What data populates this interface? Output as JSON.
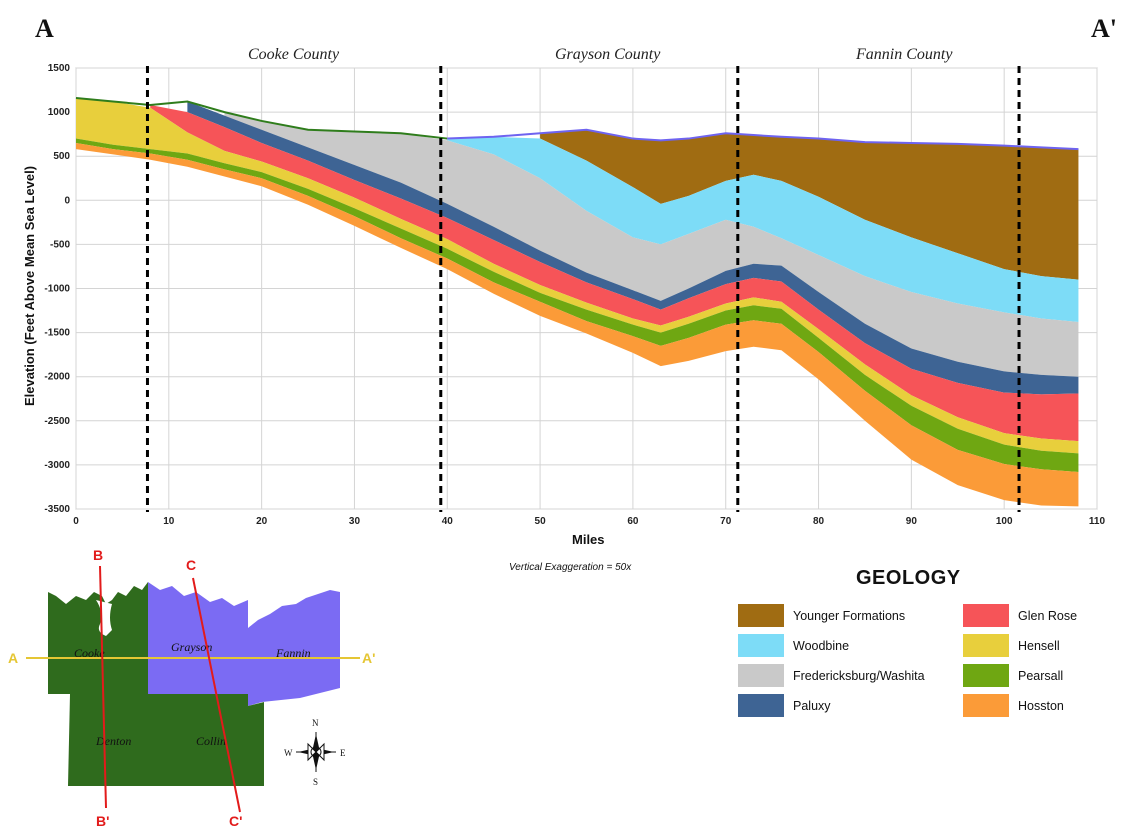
{
  "section": {
    "start_label": "A",
    "end_label": "A'"
  },
  "counties": [
    "Cooke County",
    "Grayson County",
    "Fannin County"
  ],
  "chart_data": {
    "type": "area",
    "title": "",
    "xlabel": "Miles",
    "ylabel": "Elevation (Feet Above Mean Sea Level)",
    "xlim": [
      0,
      110
    ],
    "ylim": [
      -3500,
      1500
    ],
    "x_ticks": [
      0,
      10,
      20,
      30,
      40,
      50,
      60,
      70,
      80,
      90,
      100,
      110
    ],
    "y_ticks": [
      1500,
      1000,
      500,
      0,
      -500,
      -1000,
      -1500,
      -2000,
      -2500,
      -3000,
      -3500
    ],
    "grid": true,
    "note": "Vertical Exaggeration = 50x",
    "county_boundaries_miles": [
      7.7,
      39.3,
      71.3,
      101.6
    ],
    "x": [
      0,
      4,
      8,
      12,
      16,
      20,
      25,
      30,
      35,
      40,
      45,
      50,
      55,
      60,
      63,
      66,
      70,
      73,
      76,
      80,
      85,
      90,
      95,
      100,
      104,
      108
    ],
    "surface": [
      1160,
      1120,
      1080,
      1120,
      1000,
      900,
      800,
      780,
      760,
      700,
      720,
      760,
      800,
      700,
      680,
      700,
      760,
      740,
      720,
      700,
      660,
      650,
      640,
      620,
      600,
      580
    ],
    "series": [
      {
        "name": "Younger Formations",
        "color": "#a06c12",
        "bottom": [
          null,
          null,
          null,
          null,
          null,
          null,
          null,
          null,
          null,
          null,
          null,
          700,
          450,
          150,
          -40,
          50,
          220,
          290,
          220,
          40,
          -220,
          -420,
          -600,
          -780,
          -860,
          -900
        ]
      },
      {
        "name": "Woodbine",
        "color": "#7ddcf7",
        "bottom": [
          null,
          null,
          null,
          null,
          null,
          null,
          null,
          null,
          null,
          680,
          520,
          250,
          -120,
          -420,
          -500,
          -380,
          -220,
          -300,
          -430,
          -620,
          -860,
          -1040,
          -1170,
          -1270,
          -1340,
          -1380
        ]
      },
      {
        "name": "Fredericksburg/Washita",
        "color": "#c9c9c9",
        "bottom": [
          null,
          null,
          null,
          null,
          960,
          800,
          600,
          400,
          200,
          -40,
          -300,
          -570,
          -820,
          -1020,
          -1140,
          -1000,
          -800,
          -720,
          -740,
          -1040,
          -1400,
          -1680,
          -1830,
          -1940,
          -1980,
          -2000
        ]
      },
      {
        "name": "Paluxy",
        "color": "#3e6494",
        "bottom": [
          null,
          null,
          null,
          1000,
          830,
          650,
          450,
          230,
          20,
          -200,
          -450,
          -700,
          -930,
          -1120,
          -1240,
          -1110,
          -950,
          -880,
          -920,
          -1240,
          -1620,
          -1910,
          -2070,
          -2180,
          -2200,
          -2190
        ]
      },
      {
        "name": "Glen Rose",
        "color": "#f65458",
        "bottom": [
          null,
          null,
          1050,
          770,
          560,
          440,
          250,
          30,
          -210,
          -440,
          -720,
          -960,
          -1160,
          -1340,
          -1420,
          -1320,
          -1170,
          -1100,
          -1150,
          -1460,
          -1860,
          -2210,
          -2460,
          -2640,
          -2700,
          -2730
        ]
      },
      {
        "name": "Hensell",
        "color": "#e8cf3c",
        "bottom": [
          700,
          630,
          580,
          530,
          420,
          320,
          130,
          -90,
          -320,
          -550,
          -810,
          -1050,
          -1240,
          -1410,
          -1500,
          -1400,
          -1250,
          -1190,
          -1230,
          -1560,
          -1980,
          -2330,
          -2590,
          -2770,
          -2840,
          -2870
        ]
      },
      {
        "name": "Pearsall",
        "color": "#6fa712",
        "bottom": [
          650,
          580,
          530,
          460,
          350,
          250,
          50,
          -180,
          -430,
          -660,
          -930,
          -1150,
          -1370,
          -1540,
          -1650,
          -1560,
          -1410,
          -1360,
          -1400,
          -1720,
          -2160,
          -2550,
          -2830,
          -2990,
          -3050,
          -3080
        ]
      },
      {
        "name": "Hosston",
        "color": "#fb9b38",
        "bottom": [
          580,
          520,
          460,
          380,
          270,
          160,
          -50,
          -290,
          -540,
          -780,
          -1060,
          -1310,
          -1510,
          -1730,
          -1880,
          -1820,
          -1710,
          -1660,
          -1700,
          -2030,
          -2500,
          -2940,
          -3230,
          -3400,
          -3460,
          -3470
        ]
      }
    ]
  },
  "legend": {
    "title": "GEOLOGY",
    "items": [
      {
        "label": "Younger Formations",
        "color": "#a06c12"
      },
      {
        "label": "Glen Rose",
        "color": "#f65458"
      },
      {
        "label": "Woodbine",
        "color": "#7ddcf7"
      },
      {
        "label": "Hensell",
        "color": "#e8cf3c"
      },
      {
        "label": "Fredericksburg/Washita",
        "color": "#c9c9c9"
      },
      {
        "label": "Pearsall",
        "color": "#6fa712"
      },
      {
        "label": "Paluxy",
        "color": "#3e6494"
      },
      {
        "label": "Hosston",
        "color": "#fb9b38"
      }
    ]
  },
  "map": {
    "counties": {
      "cooke": "Cooke",
      "grayson": "Grayson",
      "fannin": "Fannin",
      "denton": "Denton",
      "collin": "Collin"
    },
    "lines": {
      "a": "A",
      "a_prime": "A'",
      "b": "B",
      "b_prime": "B'",
      "c": "C",
      "c_prime": "C'"
    },
    "compass": {
      "n": "N",
      "s": "S",
      "e": "E",
      "w": "W"
    },
    "colors": {
      "green_county": "#2f6b1d",
      "purple_county": "#7b6bf3",
      "line_a": "#e5c634",
      "line_bc": "#e21b1b"
    }
  }
}
